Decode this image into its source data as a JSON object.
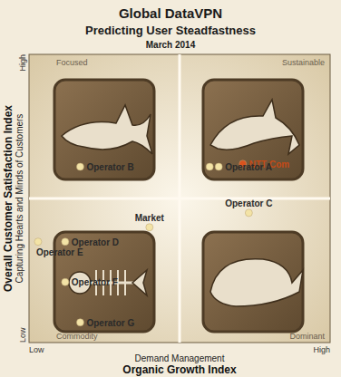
{
  "chart_data": {
    "type": "scatter",
    "title": "Global DataVPN",
    "subtitle": "Predicting User Steadfastness",
    "date": "March 2014",
    "x_label": "Organic Growth Index",
    "x_sublabel": "Demand Management",
    "y_label": "Overall Customer Satisfaction Index",
    "y_sublabel": "Capturing Hearts and Minds of Customers",
    "quadrants": [
      "Focused",
      "Sustainable",
      "Commodity",
      "Dominant"
    ],
    "labels": [
      "NTT Com",
      "Operator A",
      null,
      "Operator B",
      "Operator C",
      "Market",
      "Operator D",
      "Operator E",
      "Operator F",
      "Operator G"
    ],
    "x": [
      71,
      63,
      60,
      17,
      73,
      40,
      12,
      3,
      12,
      17
    ],
    "values": [
      62,
      61,
      61,
      61,
      45,
      40,
      35,
      35,
      21,
      7
    ],
    "colors": [
      "#d9531e",
      "#f3e3a6",
      "#f3e3a6",
      "#f3e3a6",
      "#f3e3a6",
      "#f3e3a6",
      "#f3e3a6",
      "#f3e3a6",
      "#f3e3a6",
      "#f3e3a6"
    ],
    "xlim": [
      0,
      100
    ],
    "ylim": [
      0,
      100
    ],
    "xticks": [
      {
        "value": 0,
        "label": "Low"
      },
      {
        "value": 100,
        "label": "High"
      }
    ],
    "yticks": [
      {
        "value": 0,
        "label": "Low"
      },
      {
        "value": 100,
        "label": "High"
      }
    ],
    "grid": false
  }
}
